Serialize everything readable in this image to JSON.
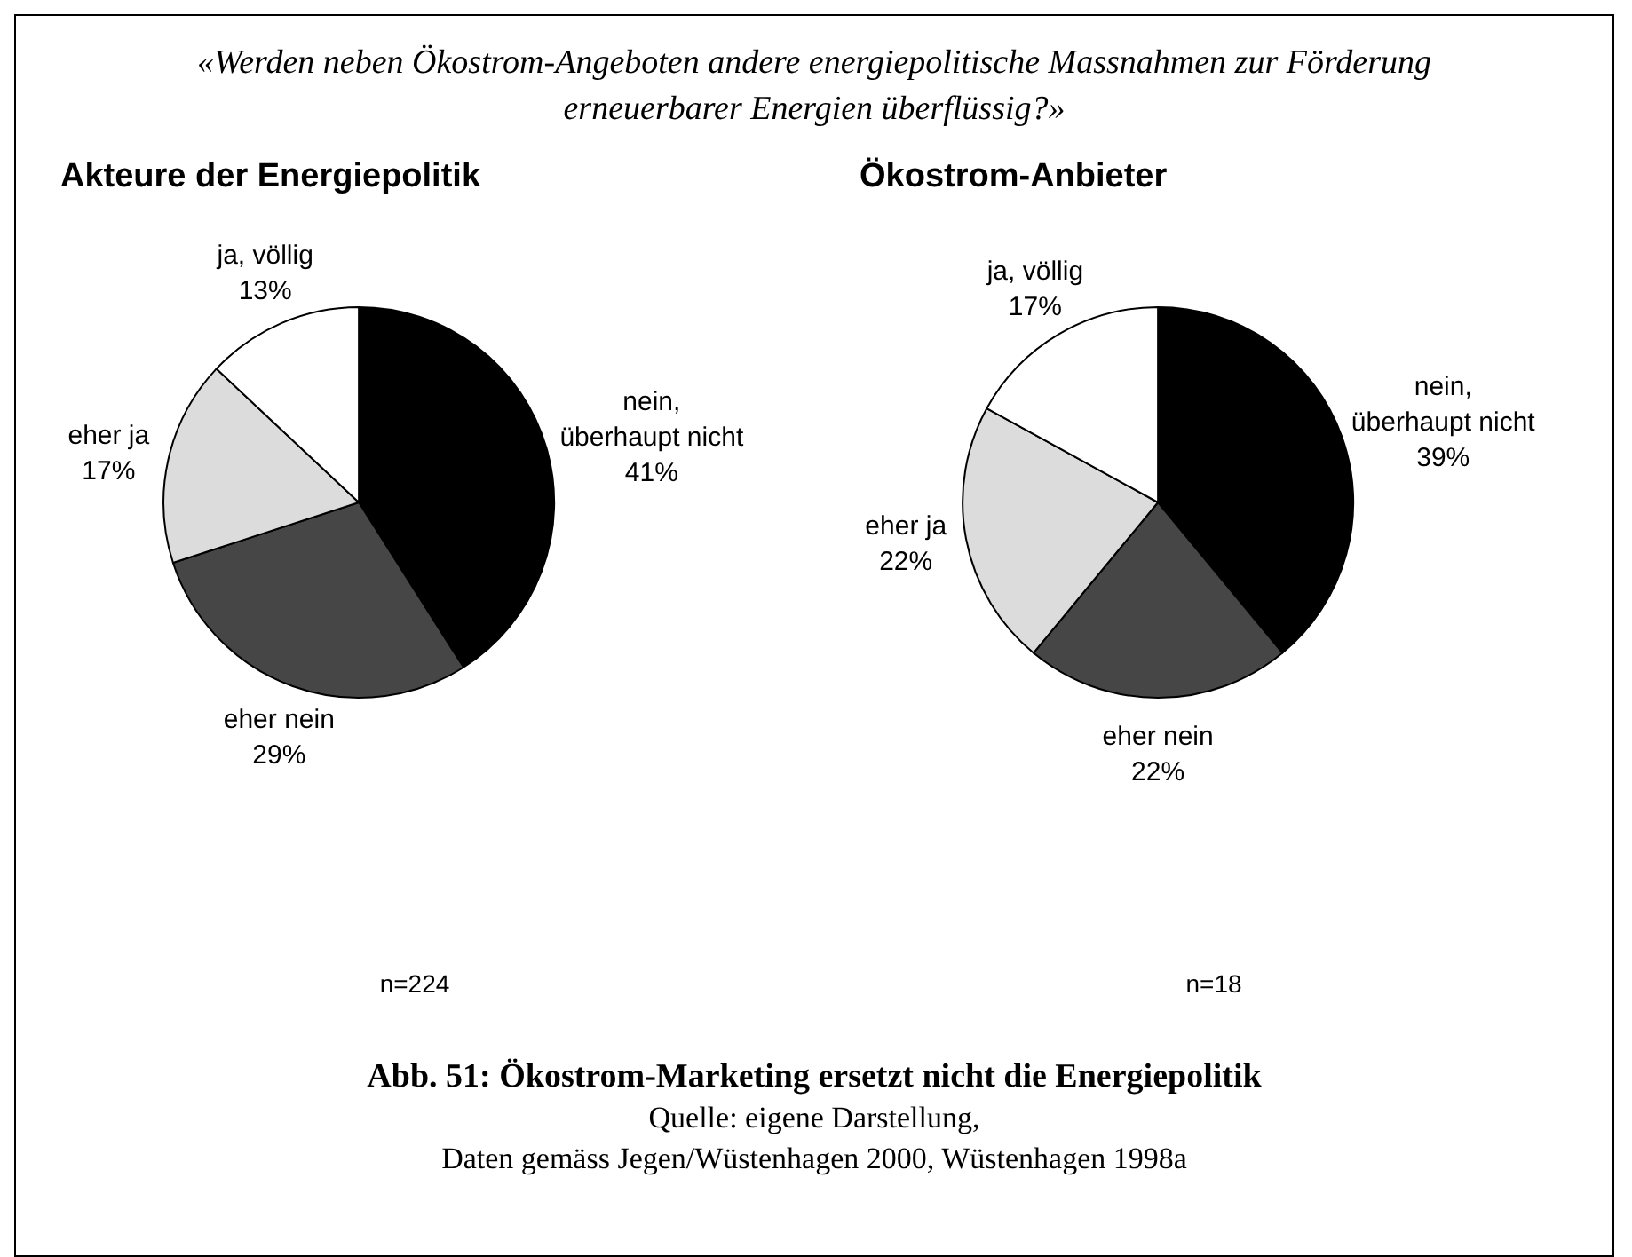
{
  "chart_data": [
    {
      "type": "pie",
      "subtitle": "«Werden neben Ökostrom-Angeboten andere energiepolitische Massnahmen zur Förderung erneuerbarer Energien überflüssig?»",
      "title": "Akteure der Energiepolitik",
      "categories": [
        "nein, überhaupt nicht",
        "eher nein",
        "eher ja",
        "ja, völlig"
      ],
      "values": [
        41,
        29,
        17,
        13
      ],
      "value_labels": [
        "41%",
        "29%",
        "17%",
        "13%"
      ],
      "colors": [
        "#000000",
        "#464646",
        "#dcdcdc",
        "#ffffff"
      ],
      "annotations": [
        "n=224"
      ]
    },
    {
      "type": "pie",
      "title": "Ökostrom-Anbieter",
      "categories": [
        "nein, überhaupt nicht",
        "eher nein",
        "eher ja",
        "ja, völlig"
      ],
      "values": [
        39,
        22,
        22,
        17
      ],
      "value_labels": [
        "39%",
        "22%",
        "22%",
        "17%"
      ],
      "colors": [
        "#000000",
        "#464646",
        "#dcdcdc",
        "#ffffff"
      ],
      "annotations": [
        "n=18",
        "Abb. 51: Ökostrom-Marketing ersetzt nicht die Energiepolitik",
        "Quelle: eigene Darstellung,",
        "Daten gemäss Jegen/Wüstenhagen 2000, Wüstenhagen 1998a"
      ]
    }
  ]
}
